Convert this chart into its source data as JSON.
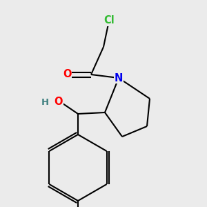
{
  "background_color": "#EBEBEB",
  "bond_color": "#000000",
  "atom_colors": {
    "Cl": "#33BB33",
    "O": "#FF0000",
    "N": "#0000EE",
    "H": "#408080",
    "C": "#000000"
  },
  "figsize": [
    3.0,
    3.0
  ],
  "dpi": 100,
  "lw": 1.5,
  "fs": 9.5
}
